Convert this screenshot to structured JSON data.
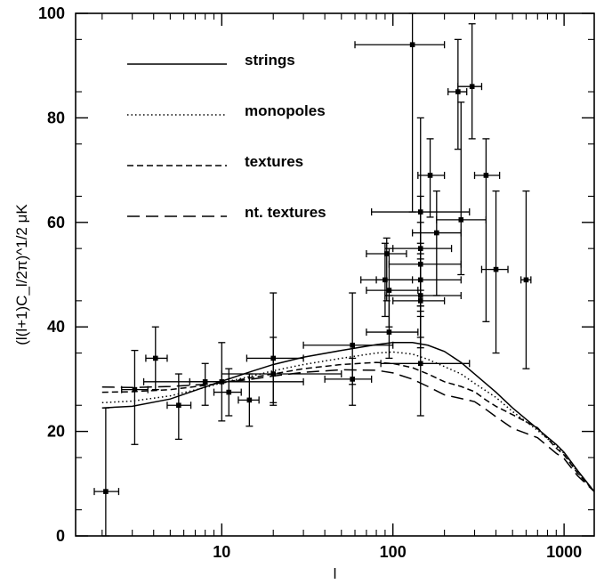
{
  "chart_data": {
    "type": "line",
    "title": "",
    "xlabel": "l",
    "ylabel": "(l(l+1)C_l/2π)^1/2 μK",
    "xscale": "log",
    "xlim": [
      1.4,
      1500
    ],
    "ylim": [
      0,
      100
    ],
    "x_ticks": [
      {
        "value": 10,
        "label": "10"
      },
      {
        "value": 100,
        "label": "100"
      },
      {
        "value": 1000,
        "label": "1000"
      }
    ],
    "y_ticks": [
      {
        "value": 0,
        "label": "0"
      },
      {
        "value": 20,
        "label": "20"
      },
      {
        "value": 40,
        "label": "40"
      },
      {
        "value": 60,
        "label": "60"
      },
      {
        "value": 80,
        "label": "80"
      },
      {
        "value": 100,
        "label": "100"
      }
    ],
    "grid": false,
    "legend_position": "top-left",
    "series": [
      {
        "name": "strings",
        "dash": "solid",
        "points": [
          [
            2,
            24.5
          ],
          [
            3,
            24.8
          ],
          [
            5,
            26.2
          ],
          [
            8,
            28.5
          ],
          [
            10,
            29.6
          ],
          [
            15,
            31.5
          ],
          [
            20,
            32.8
          ],
          [
            30,
            34.2
          ],
          [
            50,
            35.5
          ],
          [
            80,
            36.6
          ],
          [
            100,
            37
          ],
          [
            130,
            37
          ],
          [
            160,
            36.5
          ],
          [
            200,
            35.3
          ],
          [
            250,
            33.2
          ],
          [
            300,
            31
          ],
          [
            400,
            27.5
          ],
          [
            500,
            24.5
          ],
          [
            700,
            20.5
          ],
          [
            900,
            17.5
          ],
          [
            1000,
            16
          ],
          [
            1200,
            12.5
          ],
          [
            1500,
            8.5
          ]
        ]
      },
      {
        "name": "monopoles",
        "dash": "dotted",
        "points": [
          [
            2,
            25.5
          ],
          [
            3,
            25.8
          ],
          [
            5,
            26.8
          ],
          [
            8,
            28.4
          ],
          [
            10,
            29.3
          ],
          [
            15,
            30.6
          ],
          [
            20,
            31.6
          ],
          [
            30,
            32.8
          ],
          [
            50,
            34
          ],
          [
            80,
            35
          ],
          [
            100,
            35.2
          ],
          [
            130,
            34.8
          ],
          [
            160,
            33.8
          ],
          [
            200,
            32.4
          ],
          [
            250,
            31
          ],
          [
            300,
            29.2
          ],
          [
            400,
            26.5
          ],
          [
            500,
            23.8
          ],
          [
            700,
            20.2
          ],
          [
            900,
            17.2
          ],
          [
            1000,
            15.8
          ],
          [
            1200,
            12.2
          ],
          [
            1500,
            8.5
          ]
        ]
      },
      {
        "name": "textures",
        "dash": "dashed",
        "points": [
          [
            2,
            27.5
          ],
          [
            3,
            27.6
          ],
          [
            5,
            28
          ],
          [
            8,
            28.8
          ],
          [
            10,
            29.3
          ],
          [
            15,
            30.3
          ],
          [
            20,
            31
          ],
          [
            30,
            32
          ],
          [
            50,
            32.8
          ],
          [
            80,
            33.2
          ],
          [
            100,
            33
          ],
          [
            130,
            32.2
          ],
          [
            160,
            31
          ],
          [
            200,
            29.5
          ],
          [
            250,
            28.6
          ],
          [
            300,
            27.6
          ],
          [
            350,
            26
          ],
          [
            400,
            24.8
          ],
          [
            500,
            23.2
          ],
          [
            700,
            20.7
          ],
          [
            900,
            16.8
          ],
          [
            1000,
            15.5
          ],
          [
            1200,
            12
          ],
          [
            1500,
            8.5
          ]
        ]
      },
      {
        "name": "nt. textures",
        "dash": "long-dash",
        "points": [
          [
            2,
            28.5
          ],
          [
            3,
            28.4
          ],
          [
            5,
            28.6
          ],
          [
            8,
            29
          ],
          [
            10,
            29.3
          ],
          [
            15,
            30
          ],
          [
            20,
            30.6
          ],
          [
            30,
            31.3
          ],
          [
            50,
            31.8
          ],
          [
            80,
            31.7
          ],
          [
            100,
            31.2
          ],
          [
            130,
            30
          ],
          [
            160,
            28.6
          ],
          [
            200,
            27
          ],
          [
            250,
            26.3
          ],
          [
            300,
            25.7
          ],
          [
            350,
            24.2
          ],
          [
            400,
            22.8
          ],
          [
            500,
            20.6
          ],
          [
            700,
            18.8
          ],
          [
            900,
            15.8
          ],
          [
            1000,
            14.8
          ],
          [
            1200,
            11.5
          ],
          [
            1500,
            8.5
          ]
        ]
      }
    ],
    "data_points": [
      {
        "x": 2.1,
        "y": 8.5,
        "xerr": [
          1.8,
          2.5
        ],
        "yerr": [
          0,
          24.5
        ]
      },
      {
        "x": 3.1,
        "y": 28,
        "xerr": [
          2.6,
          3.7
        ],
        "yerr": [
          17.5,
          35.5
        ]
      },
      {
        "x": 4.1,
        "y": 34,
        "xerr": [
          3.6,
          4.8
        ],
        "yerr": [
          28,
          40
        ]
      },
      {
        "x": 5.6,
        "y": 25,
        "xerr": [
          4.8,
          6.6
        ],
        "yerr": [
          18.5,
          31
        ]
      },
      {
        "x": 8,
        "y": 29.5,
        "xerr": [
          6.5,
          10
        ],
        "yerr": [
          25,
          33
        ]
      },
      {
        "x": 10,
        "y": 29.5,
        "xerr": [
          3.5,
          30
        ],
        "yerr": [
          22,
          37
        ]
      },
      {
        "x": 11,
        "y": 27.5,
        "xerr": [
          9,
          13
        ],
        "yerr": [
          23,
          32
        ]
      },
      {
        "x": 14.5,
        "y": 26,
        "xerr": [
          12.5,
          16.5
        ],
        "yerr": [
          21,
          31
        ]
      },
      {
        "x": 20,
        "y": 34,
        "xerr": [
          14,
          30
        ],
        "yerr": [
          25,
          46.5
        ]
      },
      {
        "x": 20,
        "y": 31,
        "xerr": [
          10,
          50
        ],
        "yerr": [
          25.5,
          38
        ]
      },
      {
        "x": 58,
        "y": 36.5,
        "xerr": [
          30,
          100
        ],
        "yerr": [
          29,
          46.5
        ]
      },
      {
        "x": 58,
        "y": 30,
        "xerr": [
          40,
          75
        ],
        "yerr": [
          25,
          34
        ]
      },
      {
        "x": 90,
        "y": 49,
        "xerr": [
          65,
          130
        ],
        "yerr": [
          42,
          56
        ]
      },
      {
        "x": 92,
        "y": 54,
        "xerr": [
          70,
          120
        ],
        "yerr": [
          45,
          57
        ]
      },
      {
        "x": 95,
        "y": 47,
        "xerr": [
          70,
          140
        ],
        "yerr": [
          40,
          55
        ]
      },
      {
        "x": 95,
        "y": 39,
        "xerr": [
          70,
          140
        ],
        "yerr": [
          34,
          46
        ]
      },
      {
        "x": 130,
        "y": 94,
        "xerr": [
          60,
          200
        ],
        "yerr": [
          62,
          100
        ]
      },
      {
        "x": 145,
        "y": 62,
        "xerr": [
          75,
          280
        ],
        "yerr": [
          43,
          80
        ]
      },
      {
        "x": 145,
        "y": 55,
        "xerr": [
          100,
          220
        ],
        "yerr": [
          47,
          65
        ]
      },
      {
        "x": 145,
        "y": 52,
        "xerr": [
          95,
          250
        ],
        "yerr": [
          44,
          60
        ]
      },
      {
        "x": 145,
        "y": 49,
        "xerr": [
          80,
          250
        ],
        "yerr": [
          42,
          56
        ]
      },
      {
        "x": 145,
        "y": 46,
        "xerr": [
          90,
          250
        ],
        "yerr": [
          38,
          53
        ]
      },
      {
        "x": 145,
        "y": 45,
        "xerr": [
          100,
          200
        ],
        "yerr": [
          36,
          54
        ]
      },
      {
        "x": 145,
        "y": 33,
        "xerr": [
          85,
          280
        ],
        "yerr": [
          23,
          44
        ]
      },
      {
        "x": 165,
        "y": 69,
        "xerr": [
          140,
          200
        ],
        "yerr": [
          61,
          76
        ]
      },
      {
        "x": 180,
        "y": 58,
        "xerr": [
          130,
          250
        ],
        "yerr": [
          46,
          66
        ]
      },
      {
        "x": 240,
        "y": 85,
        "xerr": [
          210,
          270
        ],
        "yerr": [
          74,
          95
        ]
      },
      {
        "x": 250,
        "y": 60.5,
        "xerr": [
          180,
          350
        ],
        "yerr": [
          50,
          83
        ]
      },
      {
        "x": 290,
        "y": 86,
        "xerr": [
          240,
          330
        ],
        "yerr": [
          76,
          98
        ]
      },
      {
        "x": 350,
        "y": 69,
        "xerr": [
          300,
          420
        ],
        "yerr": [
          41,
          76
        ]
      },
      {
        "x": 400,
        "y": 51,
        "xerr": [
          330,
          470
        ],
        "yerr": [
          35,
          66
        ]
      },
      {
        "x": 600,
        "y": 49,
        "xerr": [
          560,
          640
        ],
        "yerr": [
          32,
          66
        ]
      }
    ]
  }
}
